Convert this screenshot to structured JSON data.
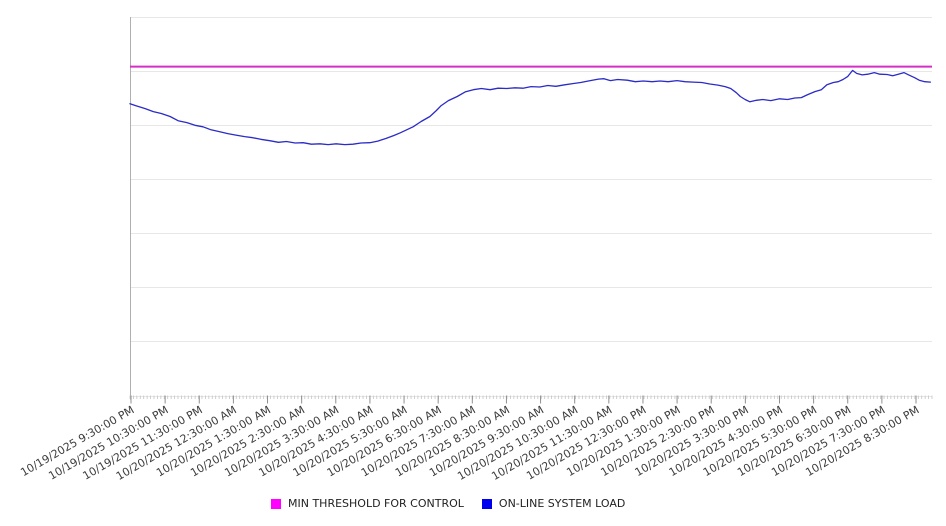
{
  "page": {
    "background": "#ffffff"
  },
  "chart_data": {
    "type": "line",
    "title": "",
    "x_axis": {
      "label_rotation_deg": -30,
      "tick_labels": [
        "10/19/2025 9:30:00 PM",
        "10/19/2025 10:30:00 PM",
        "10/19/2025 11:30:00 PM",
        "10/20/2025 12:30:00 AM",
        "10/20/2025 1:30:00 AM",
        "10/20/2025 2:30:00 AM",
        "10/20/2025 3:30:00 AM",
        "10/20/2025 4:30:00 AM",
        "10/20/2025 5:30:00 AM",
        "10/20/2025 6:30:00 AM",
        "10/20/2025 7:30:00 AM",
        "10/20/2025 8:30:00 AM",
        "10/20/2025 9:30:00 AM",
        "10/20/2025 10:30:00 AM",
        "10/20/2025 11:30:00 AM",
        "10/20/2025 12:30:00 PM",
        "10/20/2025 1:30:00 PM",
        "10/20/2025 2:30:00 PM",
        "10/20/2025 3:30:00 PM",
        "10/20/2025 4:30:00 PM",
        "10/20/2025 5:30:00 PM",
        "10/20/2025 6:30:00 PM",
        "10/20/2025 7:30:00 PM",
        "10/20/2025 8:30:00 PM"
      ]
    },
    "y_axis": {
      "tick_labels": [],
      "gridline_count": 8
    },
    "value_scale_note": "y-axis has no visible labels; values encoded as percent of plot height (0 = bottom axis, 100 = top gridline)",
    "series": [
      {
        "name": "MIN THRESHOLD FOR CONTROL",
        "kind": "constant",
        "color": "#d42fc6",
        "stroke_width": 2,
        "value_pct": 86.9
      },
      {
        "name": "ON-LINE SYSTEM LOAD",
        "kind": "line",
        "color": "#2b2bc7",
        "stroke_width": 1.3,
        "points_pct": [
          [
            0.0,
            77.1
          ],
          [
            0.7,
            76.6
          ],
          [
            1.9,
            75.8
          ],
          [
            2.9,
            75.0
          ],
          [
            3.9,
            74.5
          ],
          [
            5.0,
            73.7
          ],
          [
            6.0,
            72.6
          ],
          [
            7.1,
            72.1
          ],
          [
            8.1,
            71.4
          ],
          [
            9.1,
            71.0
          ],
          [
            10.1,
            70.2
          ],
          [
            11.2,
            69.7
          ],
          [
            12.2,
            69.2
          ],
          [
            13.2,
            68.8
          ],
          [
            14.3,
            68.4
          ],
          [
            15.3,
            68.1
          ],
          [
            16.3,
            67.7
          ],
          [
            17.5,
            67.3
          ],
          [
            18.5,
            66.9
          ],
          [
            19.5,
            67.1
          ],
          [
            20.6,
            66.7
          ],
          [
            21.6,
            66.8
          ],
          [
            22.6,
            66.4
          ],
          [
            23.7,
            66.5
          ],
          [
            24.7,
            66.3
          ],
          [
            25.7,
            66.5
          ],
          [
            26.8,
            66.3
          ],
          [
            27.8,
            66.4
          ],
          [
            28.8,
            66.7
          ],
          [
            29.9,
            66.8
          ],
          [
            30.9,
            67.2
          ],
          [
            31.9,
            67.9
          ],
          [
            32.9,
            68.7
          ],
          [
            33.7,
            69.4
          ],
          [
            34.5,
            70.2
          ],
          [
            35.3,
            71.0
          ],
          [
            36.3,
            72.4
          ],
          [
            37.4,
            73.7
          ],
          [
            38.2,
            75.3
          ],
          [
            38.8,
            76.6
          ],
          [
            39.7,
            77.9
          ],
          [
            40.8,
            79.0
          ],
          [
            41.8,
            80.2
          ],
          [
            42.8,
            80.8
          ],
          [
            43.8,
            81.1
          ],
          [
            44.9,
            80.8
          ],
          [
            45.9,
            81.2
          ],
          [
            47.0,
            81.1
          ],
          [
            48.0,
            81.3
          ],
          [
            49.0,
            81.2
          ],
          [
            50.0,
            81.6
          ],
          [
            51.1,
            81.5
          ],
          [
            52.1,
            81.9
          ],
          [
            53.1,
            81.7
          ],
          [
            54.2,
            82.1
          ],
          [
            55.2,
            82.4
          ],
          [
            56.2,
            82.7
          ],
          [
            57.4,
            83.2
          ],
          [
            58.4,
            83.6
          ],
          [
            59.1,
            83.7
          ],
          [
            59.9,
            83.2
          ],
          [
            60.8,
            83.5
          ],
          [
            62.0,
            83.3
          ],
          [
            63.0,
            82.9
          ],
          [
            64.0,
            83.1
          ],
          [
            65.1,
            82.9
          ],
          [
            66.1,
            83.1
          ],
          [
            67.1,
            82.9
          ],
          [
            68.2,
            83.2
          ],
          [
            69.2,
            82.9
          ],
          [
            70.2,
            82.8
          ],
          [
            71.3,
            82.7
          ],
          [
            72.3,
            82.3
          ],
          [
            73.3,
            82.0
          ],
          [
            74.2,
            81.6
          ],
          [
            74.9,
            81.1
          ],
          [
            75.6,
            80.0
          ],
          [
            76.1,
            79.0
          ],
          [
            76.7,
            78.2
          ],
          [
            77.3,
            77.6
          ],
          [
            78.1,
            78.0
          ],
          [
            78.9,
            78.2
          ],
          [
            79.9,
            77.9
          ],
          [
            81.0,
            78.4
          ],
          [
            82.0,
            78.2
          ],
          [
            82.9,
            78.6
          ],
          [
            83.7,
            78.7
          ],
          [
            84.5,
            79.5
          ],
          [
            85.4,
            80.3
          ],
          [
            86.2,
            80.8
          ],
          [
            86.9,
            82.1
          ],
          [
            87.7,
            82.7
          ],
          [
            88.3,
            82.9
          ],
          [
            88.9,
            83.5
          ],
          [
            89.5,
            84.3
          ],
          [
            90.1,
            85.9
          ],
          [
            90.6,
            85.1
          ],
          [
            91.3,
            84.7
          ],
          [
            92.0,
            84.9
          ],
          [
            92.8,
            85.3
          ],
          [
            93.5,
            84.9
          ],
          [
            94.4,
            84.8
          ],
          [
            95.1,
            84.5
          ],
          [
            95.8,
            84.9
          ],
          [
            96.5,
            85.3
          ],
          [
            97.1,
            84.7
          ],
          [
            97.8,
            84.0
          ],
          [
            98.4,
            83.3
          ],
          [
            99.1,
            82.9
          ],
          [
            99.8,
            82.8
          ]
        ]
      }
    ],
    "legend_position": "bottom-center",
    "grid": "horizontal-only"
  },
  "legend": {
    "items": [
      {
        "label": "MIN THRESHOLD FOR CONTROL",
        "color": "#ff00ff"
      },
      {
        "label": "ON-LINE SYSTEM LOAD",
        "color": "#0000ee"
      }
    ]
  },
  "chart_colors": {
    "gridline": "#e7e7e7",
    "y_axis_line": "#b0b0b0",
    "minor_tick": "#c4c4c4",
    "major_tick": "#8f8f8f",
    "axis_label_text": "#3d3d3d"
  }
}
